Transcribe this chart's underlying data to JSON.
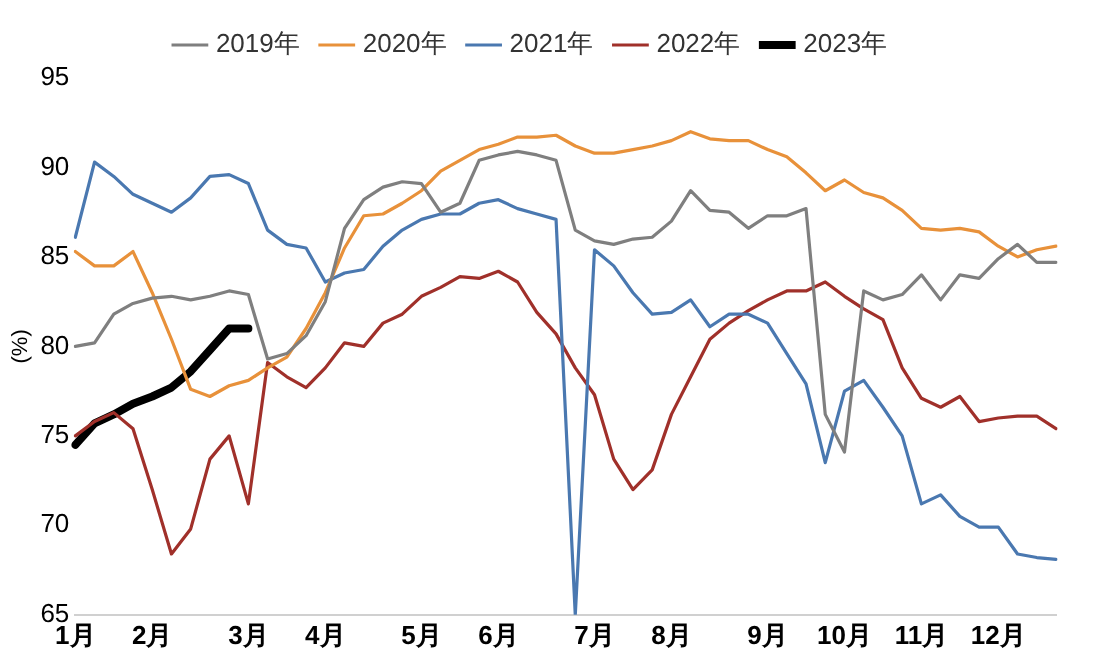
{
  "chart_data": {
    "type": "line",
    "ylabel": "(%)",
    "legend": "top",
    "grid": false,
    "marker": "none",
    "line_style": "solid",
    "categories": [
      "1月",
      null,
      null,
      null,
      "2月",
      null,
      null,
      null,
      null,
      "3月",
      null,
      null,
      null,
      "4月",
      null,
      null,
      null,
      null,
      "5月",
      null,
      null,
      null,
      "6月",
      null,
      null,
      null,
      null,
      "7月",
      null,
      null,
      null,
      "8月",
      null,
      null,
      null,
      null,
      "9月",
      null,
      null,
      null,
      "10月",
      null,
      null,
      null,
      "11月",
      null,
      null,
      null,
      "12月",
      null,
      null,
      null
    ],
    "ylim": [
      65,
      95
    ],
    "yticks": [
      65,
      70,
      75,
      80,
      85,
      90,
      95
    ],
    "series": [
      {
        "name": "2019年",
        "color": "#7f7f7f",
        "values": [
          80.0,
          80.2,
          81.8,
          82.4,
          82.7,
          82.8,
          82.6,
          82.8,
          83.1,
          82.9,
          79.3,
          79.6,
          80.6,
          82.5,
          86.6,
          88.2,
          88.9,
          89.2,
          89.1,
          87.5,
          88.0,
          90.4,
          90.7,
          90.9,
          90.7,
          90.4,
          86.5,
          85.9,
          85.7,
          86.0,
          86.1,
          87.0,
          88.7,
          87.6,
          87.5,
          86.6,
          87.3,
          87.3,
          87.7,
          76.2,
          74.1,
          83.1,
          82.6,
          82.9,
          84.0,
          82.6,
          84.0,
          83.8,
          84.9,
          85.7,
          84.7,
          84.7
        ]
      },
      {
        "name": "2020年",
        "color": "#e8913a",
        "values": [
          85.3,
          84.5,
          84.5,
          85.3,
          83.0,
          80.4,
          77.6,
          77.2,
          77.8,
          78.1,
          78.8,
          79.4,
          81.0,
          83.0,
          85.5,
          87.3,
          87.4,
          88.0,
          88.7,
          89.8,
          90.4,
          91.0,
          91.3,
          91.7,
          91.7,
          91.8,
          91.2,
          90.8,
          90.8,
          91.0,
          91.2,
          91.5,
          92.0,
          91.6,
          91.5,
          91.5,
          91.0,
          90.6,
          89.7,
          88.7,
          89.3,
          88.6,
          88.3,
          87.6,
          86.6,
          86.5,
          86.6,
          86.4,
          85.6,
          85.0,
          85.4,
          85.6
        ]
      },
      {
        "name": "2021年",
        "color": "#4a78b0",
        "values": [
          86.1,
          90.3,
          89.5,
          88.5,
          88.0,
          87.5,
          88.3,
          89.5,
          89.6,
          89.1,
          86.5,
          85.7,
          85.5,
          83.6,
          84.1,
          84.3,
          85.6,
          86.5,
          87.1,
          87.4,
          87.4,
          88.0,
          88.2,
          87.7,
          87.4,
          87.1,
          65.0,
          85.4,
          84.5,
          83.0,
          81.8,
          81.9,
          82.6,
          81.1,
          81.8,
          81.8,
          81.3,
          79.6,
          77.9,
          73.5,
          77.5,
          78.1,
          76.6,
          75.0,
          71.2,
          71.7,
          70.5,
          69.9,
          69.9,
          68.4,
          68.2,
          68.1
        ]
      },
      {
        "name": "2022年",
        "color": "#a0302a",
        "values": [
          75.0,
          75.8,
          76.3,
          75.4,
          72.0,
          68.4,
          69.8,
          73.7,
          75.0,
          71.2,
          79.1,
          78.3,
          77.7,
          78.8,
          80.2,
          80.0,
          81.3,
          81.8,
          82.8,
          83.3,
          83.9,
          83.8,
          84.2,
          83.6,
          81.9,
          80.7,
          78.8,
          77.3,
          73.7,
          72.0,
          73.1,
          76.2,
          78.3,
          80.4,
          81.3,
          82.0,
          82.6,
          83.1,
          83.1,
          83.6,
          82.8,
          82.1,
          81.5,
          78.8,
          77.1,
          76.6,
          77.2,
          75.8,
          76.0,
          76.1,
          76.1,
          75.4
        ]
      },
      {
        "name": "2023年",
        "color": "#000000",
        "values": [
          74.5,
          75.7,
          76.2,
          76.8,
          77.2,
          77.7,
          78.6,
          79.8,
          81.0,
          81.0,
          null,
          null,
          null,
          null,
          null,
          null,
          null,
          null,
          null,
          null,
          null,
          null,
          null,
          null,
          null,
          null,
          null,
          null,
          null,
          null,
          null,
          null,
          null,
          null,
          null,
          null,
          null,
          null,
          null,
          null,
          null,
          null,
          null,
          null,
          null,
          null,
          null,
          null,
          null,
          null,
          null,
          null
        ]
      }
    ]
  }
}
